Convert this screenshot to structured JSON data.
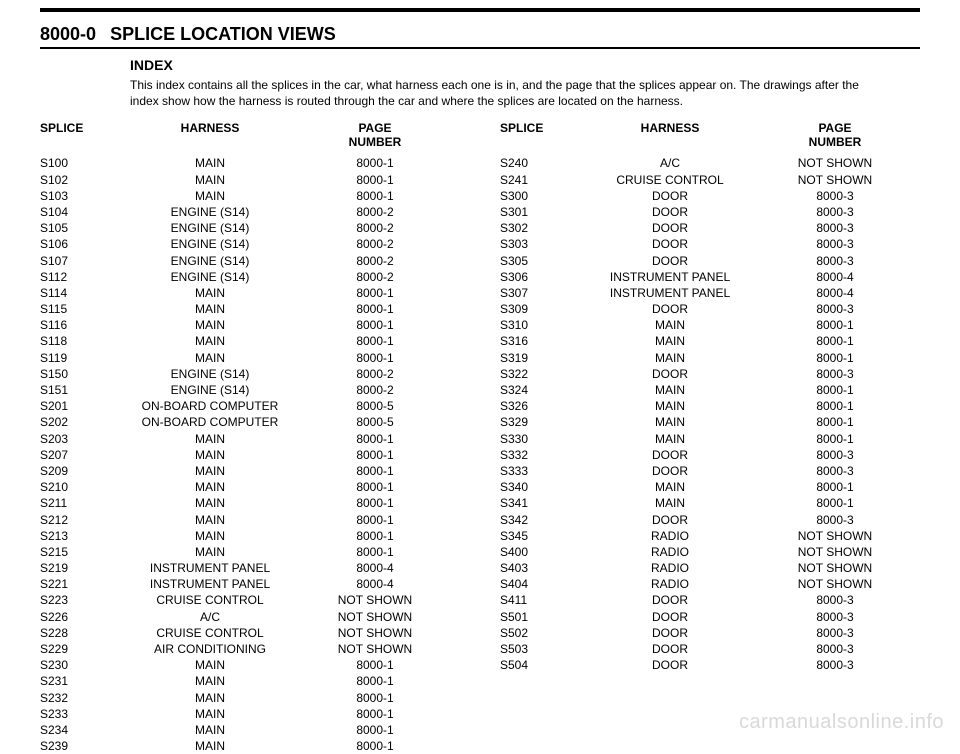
{
  "header": {
    "page_code": "8000-0",
    "title": "SPLICE LOCATION VIEWS"
  },
  "index": {
    "heading": "INDEX",
    "description": "This index contains all the splices in the car, what harness each one is in, and the page that the splices appear on. The drawings after the index show how the harness is routed through the car and where the splices are located on the harness."
  },
  "col_headers": {
    "splice": "SPLICE",
    "harness": "HARNESS",
    "page": "PAGE",
    "page2": "NUMBER"
  },
  "left": [
    {
      "splice": "S100",
      "harness": "MAIN",
      "page": "8000-1"
    },
    {
      "splice": "S102",
      "harness": "MAIN",
      "page": "8000-1"
    },
    {
      "splice": "S103",
      "harness": "MAIN",
      "page": "8000-1"
    },
    {
      "splice": "S104",
      "harness": "ENGINE (S14)",
      "page": "8000-2"
    },
    {
      "splice": "S105",
      "harness": "ENGINE (S14)",
      "page": "8000-2"
    },
    {
      "splice": "S106",
      "harness": "ENGINE (S14)",
      "page": "8000-2"
    },
    {
      "splice": "S107",
      "harness": "ENGINE (S14)",
      "page": "8000-2"
    },
    {
      "splice": "S112",
      "harness": "ENGINE (S14)",
      "page": "8000-2"
    },
    {
      "splice": "S114",
      "harness": "MAIN",
      "page": "8000-1"
    },
    {
      "splice": "S115",
      "harness": "MAIN",
      "page": "8000-1"
    },
    {
      "splice": "S116",
      "harness": "MAIN",
      "page": "8000-1"
    },
    {
      "splice": "S118",
      "harness": "MAIN",
      "page": "8000-1"
    },
    {
      "splice": "S119",
      "harness": "MAIN",
      "page": "8000-1"
    },
    {
      "splice": "S150",
      "harness": "ENGINE (S14)",
      "page": "8000-2"
    },
    {
      "splice": "S151",
      "harness": "ENGINE (S14)",
      "page": "8000-2"
    },
    {
      "splice": "S201",
      "harness": "ON-BOARD COMPUTER",
      "page": "8000-5"
    },
    {
      "splice": "S202",
      "harness": "ON-BOARD COMPUTER",
      "page": "8000-5"
    },
    {
      "splice": "S203",
      "harness": "MAIN",
      "page": "8000-1"
    },
    {
      "splice": "S207",
      "harness": "MAIN",
      "page": "8000-1"
    },
    {
      "splice": "S209",
      "harness": "MAIN",
      "page": "8000-1"
    },
    {
      "splice": "S210",
      "harness": "MAIN",
      "page": "8000-1"
    },
    {
      "splice": "S211",
      "harness": "MAIN",
      "page": "8000-1"
    },
    {
      "splice": "S212",
      "harness": "MAIN",
      "page": "8000-1"
    },
    {
      "splice": "S213",
      "harness": "MAIN",
      "page": "8000-1"
    },
    {
      "splice": "S215",
      "harness": "MAIN",
      "page": "8000-1"
    },
    {
      "splice": "S219",
      "harness": "INSTRUMENT PANEL",
      "page": "8000-4"
    },
    {
      "splice": "S221",
      "harness": "INSTRUMENT PANEL",
      "page": "8000-4"
    },
    {
      "splice": "S223",
      "harness": "CRUISE CONTROL",
      "page": "NOT SHOWN"
    },
    {
      "splice": "S226",
      "harness": "A/C",
      "page": "NOT SHOWN"
    },
    {
      "splice": "S228",
      "harness": "CRUISE CONTROL",
      "page": "NOT SHOWN"
    },
    {
      "splice": "S229",
      "harness": "AIR CONDITIONING",
      "page": "NOT SHOWN"
    },
    {
      "splice": "S230",
      "harness": "MAIN",
      "page": "8000-1"
    },
    {
      "splice": "S231",
      "harness": "MAIN",
      "page": "8000-1"
    },
    {
      "splice": "S232",
      "harness": "MAIN",
      "page": "8000-1"
    },
    {
      "splice": "S233",
      "harness": "MAIN",
      "page": "8000-1"
    },
    {
      "splice": "S234",
      "harness": "MAIN",
      "page": "8000-1"
    },
    {
      "splice": "S239",
      "harness": "MAIN",
      "page": "8000-1"
    }
  ],
  "right": [
    {
      "splice": "S240",
      "harness": "A/C",
      "page": "NOT SHOWN"
    },
    {
      "splice": "S241",
      "harness": "CRUISE CONTROL",
      "page": "NOT SHOWN"
    },
    {
      "splice": "S300",
      "harness": "DOOR",
      "page": "8000-3"
    },
    {
      "splice": "S301",
      "harness": "DOOR",
      "page": "8000-3"
    },
    {
      "splice": "S302",
      "harness": "DOOR",
      "page": "8000-3"
    },
    {
      "splice": "S303",
      "harness": "DOOR",
      "page": "8000-3"
    },
    {
      "splice": "S305",
      "harness": "DOOR",
      "page": "8000-3"
    },
    {
      "splice": "S306",
      "harness": "INSTRUMENT PANEL",
      "page": "8000-4"
    },
    {
      "splice": "S307",
      "harness": "INSTRUMENT PANEL",
      "page": "8000-4"
    },
    {
      "splice": "S309",
      "harness": "DOOR",
      "page": "8000-3"
    },
    {
      "splice": "S310",
      "harness": "MAIN",
      "page": "8000-1"
    },
    {
      "splice": "S316",
      "harness": "MAIN",
      "page": "8000-1"
    },
    {
      "splice": "S319",
      "harness": "MAIN",
      "page": "8000-1"
    },
    {
      "splice": "S322",
      "harness": "DOOR",
      "page": "8000-3"
    },
    {
      "splice": "S324",
      "harness": "MAIN",
      "page": "8000-1"
    },
    {
      "splice": "S326",
      "harness": "MAIN",
      "page": "8000-1"
    },
    {
      "splice": "S329",
      "harness": "MAIN",
      "page": "8000-1"
    },
    {
      "splice": "S330",
      "harness": "MAIN",
      "page": "8000-1"
    },
    {
      "splice": "S332",
      "harness": "DOOR",
      "page": "8000-3"
    },
    {
      "splice": "S333",
      "harness": "DOOR",
      "page": "8000-3"
    },
    {
      "splice": "S340",
      "harness": "MAIN",
      "page": "8000-1"
    },
    {
      "splice": "S341",
      "harness": "MAIN",
      "page": "8000-1"
    },
    {
      "splice": "S342",
      "harness": "DOOR",
      "page": "8000-3"
    },
    {
      "splice": "S345",
      "harness": "RADIO",
      "page": "NOT SHOWN"
    },
    {
      "splice": "S400",
      "harness": "RADIO",
      "page": "NOT SHOWN"
    },
    {
      "splice": "S403",
      "harness": "RADIO",
      "page": "NOT SHOWN"
    },
    {
      "splice": "S404",
      "harness": "RADIO",
      "page": "NOT SHOWN"
    },
    {
      "splice": "S411",
      "harness": "DOOR",
      "page": "8000-3"
    },
    {
      "splice": "S501",
      "harness": "DOOR",
      "page": "8000-3"
    },
    {
      "splice": "S502",
      "harness": "DOOR",
      "page": "8000-3"
    },
    {
      "splice": "S503",
      "harness": "DOOR",
      "page": "8000-3"
    },
    {
      "splice": "S504",
      "harness": "DOOR",
      "page": "8000-3"
    }
  ],
  "watermark": "carmanualsonline.info"
}
